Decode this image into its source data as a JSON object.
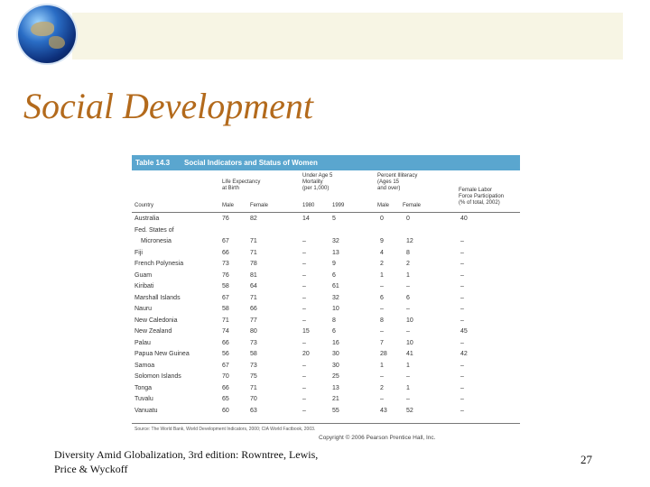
{
  "slide": {
    "title": "Social Development",
    "footer": "Diversity Amid Globalization, 3rd edition:  Rowntree, Lewis, Price & Wyckoff",
    "page_number": "27"
  },
  "table": {
    "number": "Table 14.3",
    "caption": "Social Indicators and Status of Women",
    "col_groups": {
      "life": [
        "Life Expectancy",
        "at Birth"
      ],
      "mortality": [
        "Under Age 5",
        "Mortality",
        "(per 1,000)"
      ],
      "illiteracy": [
        "Percent Illiteracy",
        "(Ages 15",
        "and over)"
      ],
      "labor": [
        "Female Labor",
        "Force Participation",
        "(% of total, 2002)"
      ]
    },
    "sub_headers": {
      "country": "Country",
      "male": "Male",
      "female": "Female",
      "y1980": "1980",
      "y1999": "1999",
      "ill_male": "Male",
      "ill_female": "Female"
    },
    "rows": [
      {
        "country": "Australia",
        "le_m": "76",
        "le_f": "82",
        "m1980": "14",
        "m1999": "5",
        "il_m": "0",
        "il_f": "0",
        "labor": "40"
      },
      {
        "country": "Fed. States of",
        "le_m": "",
        "le_f": "",
        "m1980": "",
        "m1999": "",
        "il_m": "",
        "il_f": "",
        "labor": ""
      },
      {
        "country": "Micronesia",
        "indent": true,
        "le_m": "67",
        "le_f": "71",
        "m1980": "–",
        "m1999": "32",
        "il_m": "9",
        "il_f": "12",
        "labor": "–"
      },
      {
        "country": "Fiji",
        "le_m": "66",
        "le_f": "71",
        "m1980": "–",
        "m1999": "13",
        "il_m": "4",
        "il_f": "8",
        "labor": "–"
      },
      {
        "country": "French Polynesia",
        "le_m": "73",
        "le_f": "78",
        "m1980": "–",
        "m1999": "9",
        "il_m": "2",
        "il_f": "2",
        "labor": "–"
      },
      {
        "country": "Guam",
        "le_m": "76",
        "le_f": "81",
        "m1980": "–",
        "m1999": "6",
        "il_m": "1",
        "il_f": "1",
        "labor": "–"
      },
      {
        "country": "Kiribati",
        "le_m": "58",
        "le_f": "64",
        "m1980": "–",
        "m1999": "61",
        "il_m": "–",
        "il_f": "–",
        "labor": "–"
      },
      {
        "country": "Marshall Islands",
        "le_m": "67",
        "le_f": "71",
        "m1980": "–",
        "m1999": "32",
        "il_m": "6",
        "il_f": "6",
        "labor": "–"
      },
      {
        "country": "Nauru",
        "le_m": "58",
        "le_f": "66",
        "m1980": "–",
        "m1999": "10",
        "il_m": "–",
        "il_f": "–",
        "labor": "–"
      },
      {
        "country": "New Caledonia",
        "le_m": "71",
        "le_f": "77",
        "m1980": "–",
        "m1999": "8",
        "il_m": "8",
        "il_f": "10",
        "labor": "–"
      },
      {
        "country": "New Zealand",
        "le_m": "74",
        "le_f": "80",
        "m1980": "15",
        "m1999": "6",
        "il_m": "–",
        "il_f": "–",
        "labor": "45"
      },
      {
        "country": "Palau",
        "le_m": "66",
        "le_f": "73",
        "m1980": "–",
        "m1999": "16",
        "il_m": "7",
        "il_f": "10",
        "labor": "–"
      },
      {
        "country": "Papua New Guinea",
        "le_m": "56",
        "le_f": "58",
        "m1980": "20",
        "m1999": "30",
        "il_m": "28",
        "il_f": "41",
        "labor": "42"
      },
      {
        "country": "Samoa",
        "le_m": "67",
        "le_f": "73",
        "m1980": "–",
        "m1999": "30",
        "il_m": "1",
        "il_f": "1",
        "labor": "–"
      },
      {
        "country": "Solomon Islands",
        "le_m": "70",
        "le_f": "75",
        "m1980": "–",
        "m1999": "25",
        "il_m": "–",
        "il_f": "–",
        "labor": "–"
      },
      {
        "country": "Tonga",
        "le_m": "66",
        "le_f": "71",
        "m1980": "–",
        "m1999": "13",
        "il_m": "2",
        "il_f": "1",
        "labor": "–"
      },
      {
        "country": "Tuvalu",
        "le_m": "65",
        "le_f": "70",
        "m1980": "–",
        "m1999": "21",
        "il_m": "–",
        "il_f": "–",
        "labor": "–"
      },
      {
        "country": "Vanuatu",
        "le_m": "60",
        "le_f": "63",
        "m1980": "–",
        "m1999": "55",
        "il_m": "43",
        "il_f": "52",
        "labor": "–"
      }
    ],
    "source": "Source: The World Bank, World Development Indicators, 2000; CIA World Factbook, 2003.",
    "copyright": "Copyright © 2006 Pearson Prentice Hall, Inc."
  }
}
